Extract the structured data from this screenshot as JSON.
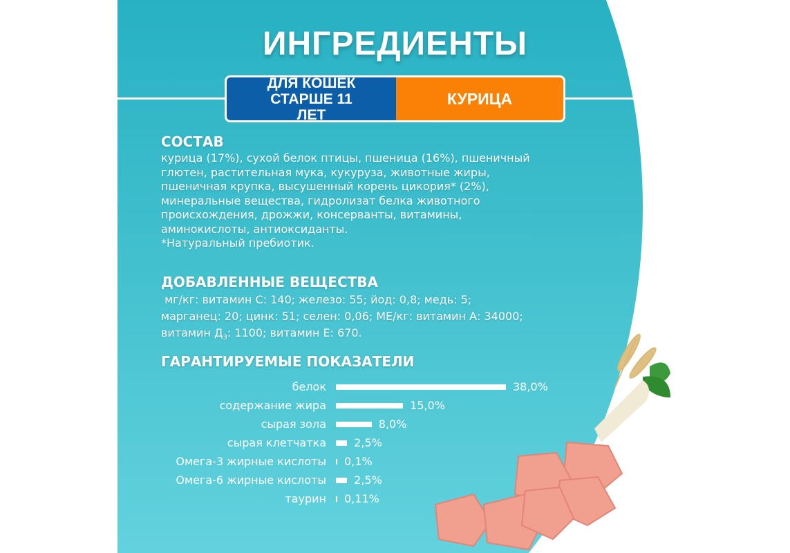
{
  "title": "ИНГРЕДИЕНТЫ",
  "badge": {
    "audience": "ДЛЯ КОШЕК СТАРШЕ 11 ЛЕТ",
    "flavor": "КУРИЦА"
  },
  "colors": {
    "panel": "#2ab3c4",
    "badge_blue": "#0d5ea8",
    "badge_orange": "#fb8106"
  },
  "composition": {
    "heading": "СОСТАВ",
    "lines": [
      "курица (17%), сухой белок птицы, пшеница (16%), пшеничный",
      "глютен, растительная мука, кукуруза, животные жиры,",
      "пшеничная крупка, высушенный корень цикория* (2%),",
      "минеральные вещества, гидролизат белка животного",
      "происхождения, дрожжи, консерванты, витамины,",
      "аминокислоты, антиоксиданты.",
      "*Натуральный пребиотик."
    ]
  },
  "additives": {
    "heading": "ДОБАВЛЕННЫЕ ВЕЩЕСТВА",
    "line1": " мг/кг: витамин С: 140; железо: 55; йод: 0,8; медь: 5;",
    "line2": "марганец: 20; цинк: 51; селен: 0,06; МЕ/кг: витамин А: 34000;",
    "line3a": "витамин Д",
    "line3sub": "3",
    "line3b": ": 1100; витамин Е: 670."
  },
  "chart_data": {
    "type": "bar",
    "title": "ГАРАНТИРУЕМЫЕ ПОКАЗАТЕЛИ",
    "orientation": "horizontal",
    "categories": [
      "белок",
      "содержание жира",
      "сырая зола",
      "сырая клетчатка",
      "Омега-3 жирные кислоты",
      "Омега-6 жирные кислоты",
      "таурин"
    ],
    "values": [
      38.0,
      15.0,
      8.0,
      2.5,
      0.1,
      2.5,
      0.11
    ],
    "labels": [
      "38,0%",
      "15,0%",
      "8,0%",
      "2,5%",
      "0,1%",
      "2,5%",
      "0,11%"
    ],
    "unit": "%"
  }
}
